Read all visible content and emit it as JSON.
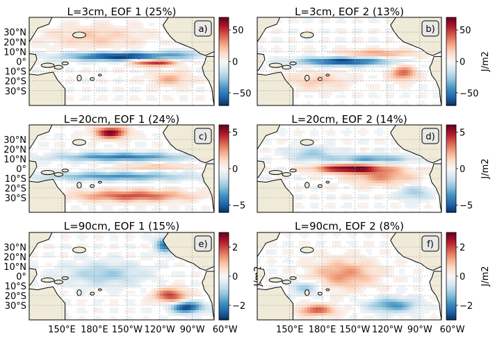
{
  "chart_data": {
    "type": "heatmap",
    "colormap": "RdBu_r",
    "land_color": "#efebd8",
    "lat_ticks": [
      "30°S",
      "20°S",
      "10°S",
      "0°",
      "10°N",
      "20°N",
      "30°N"
    ],
    "lon_ticks": [
      "150°E",
      "180°E",
      "150°W",
      "120°W",
      "90°W",
      "60°W"
    ],
    "panels": [
      {
        "id": "a",
        "title": "L=3cm, EOF 1 (25%)",
        "label": "a)",
        "cbar_ticks": [
          "−50",
          "0",
          "50"
        ],
        "cbar_values": [
          -50,
          0,
          50
        ],
        "vlim": [
          -70,
          70
        ],
        "cbar_label": "",
        "features": [
          {
            "lon": 205,
            "lat": 5,
            "amp": -1.0,
            "sx": 35,
            "sy": 3
          },
          {
            "lon": 235,
            "lat": -1,
            "amp": 0.85,
            "sx": 14,
            "sy": 2.5
          },
          {
            "lon": 250,
            "lat": -18,
            "amp": 0.35,
            "sx": 12,
            "sy": 5
          },
          {
            "lon": 180,
            "lat": 25,
            "amp": 0.25,
            "sx": 30,
            "sy": 8
          },
          {
            "lon": 260,
            "lat": 8,
            "amp": -0.3,
            "sx": 10,
            "sy": 3
          }
        ]
      },
      {
        "id": "b",
        "title": "L=3cm, EOF 2 (13%)",
        "label": "b)",
        "cbar_ticks": [
          "−50",
          "0",
          "50"
        ],
        "cbar_values": [
          -50,
          0,
          50
        ],
        "vlim": [
          -70,
          70
        ],
        "cbar_label": "J/m2",
        "features": [
          {
            "lon": 200,
            "lat": 0,
            "amp": -0.95,
            "sx": 28,
            "sy": 3
          },
          {
            "lon": 255,
            "lat": -12,
            "amp": 0.6,
            "sx": 8,
            "sy": 5
          },
          {
            "lon": 230,
            "lat": 8,
            "amp": 0.4,
            "sx": 25,
            "sy": 3
          },
          {
            "lon": 175,
            "lat": -20,
            "amp": 0.25,
            "sx": 20,
            "sy": 6
          }
        ]
      },
      {
        "id": "c",
        "title": "L=20cm, EOF 1 (24%)",
        "label": "c)",
        "cbar_ticks": [
          "−5",
          "0",
          "5"
        ],
        "cbar_values": [
          -5,
          0,
          5
        ],
        "vlim": [
          -6,
          6
        ],
        "cbar_label": "",
        "features": [
          {
            "lon": 195,
            "lat": 37,
            "amp": 0.95,
            "sx": 10,
            "sy": 4
          },
          {
            "lon": 205,
            "lat": 12,
            "amp": -0.7,
            "sx": 40,
            "sy": 3
          },
          {
            "lon": 200,
            "lat": -8,
            "amp": -0.6,
            "sx": 45,
            "sy": 3
          },
          {
            "lon": 215,
            "lat": -28,
            "amp": 0.65,
            "sx": 35,
            "sy": 4
          },
          {
            "lon": 235,
            "lat": 2,
            "amp": 0.3,
            "sx": 25,
            "sy": 2
          }
        ]
      },
      {
        "id": "d",
        "title": "L=20cm, EOF 2 (14%)",
        "label": "d)",
        "cbar_ticks": [
          "−5",
          "0",
          "5"
        ],
        "cbar_values": [
          -5,
          0,
          5
        ],
        "vlim": [
          -6,
          6
        ],
        "cbar_label": "J/m2",
        "features": [
          {
            "lon": 205,
            "lat": 0,
            "amp": 1.0,
            "sx": 22,
            "sy": 3
          },
          {
            "lon": 235,
            "lat": -8,
            "amp": 0.45,
            "sx": 20,
            "sy": 6
          },
          {
            "lon": 225,
            "lat": 10,
            "amp": -0.55,
            "sx": 25,
            "sy": 3
          },
          {
            "lon": 170,
            "lat": 15,
            "amp": -0.35,
            "sx": 15,
            "sy": 5
          },
          {
            "lon": 265,
            "lat": -25,
            "amp": -0.35,
            "sx": 10,
            "sy": 5
          }
        ]
      },
      {
        "id": "e",
        "title": "L=90cm, EOF 1 (15%)",
        "label": "e)",
        "cbar_ticks": [
          "−2",
          "0",
          "2"
        ],
        "cbar_values": [
          -2,
          0,
          2
        ],
        "vlim": [
          -3,
          3
        ],
        "cbar_label": "J/m2",
        "features": [
          {
            "lon": 265,
            "lat": -32,
            "amp": -0.95,
            "sx": 10,
            "sy": 4
          },
          {
            "lon": 250,
            "lat": -20,
            "amp": 0.7,
            "sx": 10,
            "sy": 5
          },
          {
            "lon": 245,
            "lat": 32,
            "amp": -0.7,
            "sx": 6,
            "sy": 6
          },
          {
            "lon": 145,
            "lat": -38,
            "amp": -0.8,
            "sx": 5,
            "sy": 3
          },
          {
            "lon": 190,
            "lat": 2,
            "amp": -0.35,
            "sx": 25,
            "sy": 8
          }
        ]
      },
      {
        "id": "f",
        "title": "L=90cm, EOF 2 (8%)",
        "label": "f)",
        "cbar_ticks": [
          "−2",
          "0",
          "2"
        ],
        "cbar_values": [
          -2,
          0,
          2
        ],
        "vlim": [
          -3,
          3
        ],
        "cbar_label": "J/m2",
        "features": [
          {
            "lon": 200,
            "lat": 2,
            "amp": 0.45,
            "sx": 20,
            "sy": 10
          },
          {
            "lon": 255,
            "lat": 38,
            "amp": 0.85,
            "sx": 5,
            "sy": 3
          },
          {
            "lon": 175,
            "lat": -35,
            "amp": 0.6,
            "sx": 12,
            "sy": 4
          },
          {
            "lon": 245,
            "lat": -30,
            "amp": -0.6,
            "sx": 15,
            "sy": 5
          },
          {
            "lon": 165,
            "lat": -12,
            "amp": -0.35,
            "sx": 10,
            "sy": 5
          }
        ]
      }
    ]
  }
}
